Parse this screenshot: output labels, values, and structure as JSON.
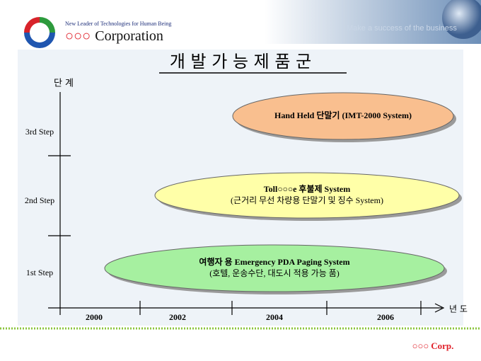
{
  "header": {
    "tagline": "New Leader of Technologies for Human Being",
    "company_mark": "○○○",
    "company_name": "Corporation",
    "watermark": "Make a success of the business"
  },
  "title": "개 발 가 능 제 품 군",
  "diagram": {
    "y_label": "단 계",
    "x_label": "년 도",
    "steps": [
      "1st Step",
      "2nd Step",
      "3rd Step"
    ],
    "years": [
      "2000",
      "2002",
      "2004",
      "2006"
    ],
    "products": [
      {
        "lines": [
          "여행자 용 Emergency PDA Paging System",
          "(호텔, 운송수단, 대도시 적용 가능 품)"
        ]
      },
      {
        "lines": [
          "Toll○○○e 후불제  System",
          "(근거리 무선 차량용 단말기 및 징수 System)"
        ]
      },
      {
        "lines": [
          "Hand Held 단말기 (IMT-2000 System)"
        ]
      }
    ]
  },
  "footer": {
    "mark": "○○○",
    "label": "Corp."
  }
}
